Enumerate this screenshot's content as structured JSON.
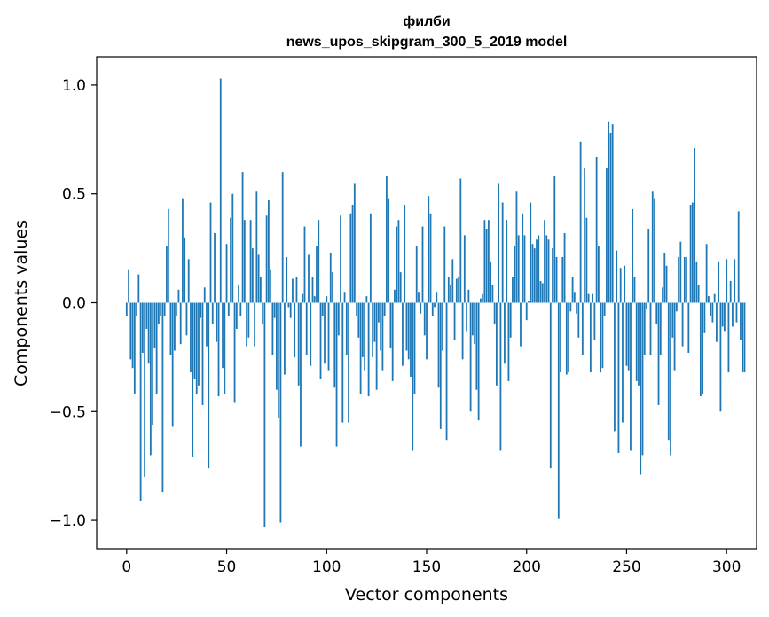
{
  "chart_data": {
    "type": "bar",
    "title_line1": "филби",
    "title_line2": "news_upos_skipgram_300_5_2019 model",
    "xlabel": "Vector components",
    "ylabel": "Components values",
    "xlim": [
      -15,
      315
    ],
    "ylim": [
      -1.13,
      1.13
    ],
    "x_ticks": [
      0,
      50,
      100,
      150,
      200,
      250,
      300
    ],
    "x_tick_labels": [
      "0",
      "50",
      "100",
      "150",
      "200",
      "250",
      "300"
    ],
    "y_ticks": [
      -1.0,
      -0.5,
      0.0,
      0.5,
      1.0
    ],
    "y_tick_labels": [
      "−1.0",
      "−0.5",
      "0.0",
      "0.5",
      "1.0"
    ],
    "bar_color": "#1f77b4",
    "values": [
      -0.06,
      0.15,
      -0.26,
      -0.3,
      -0.42,
      -0.06,
      0.13,
      -0.91,
      -0.23,
      -0.8,
      -0.12,
      -0.28,
      -0.7,
      -0.56,
      -0.21,
      -0.42,
      -0.1,
      -0.06,
      -0.87,
      -0.06,
      0.26,
      0.43,
      -0.24,
      -0.57,
      -0.22,
      -0.06,
      0.06,
      -0.19,
      0.48,
      0.3,
      -0.15,
      0.2,
      -0.32,
      -0.71,
      -0.35,
      -0.42,
      -0.38,
      -0.07,
      -0.47,
      0.07,
      -0.2,
      -0.76,
      0.46,
      -0.1,
      0.32,
      -0.18,
      -0.43,
      1.03,
      -0.3,
      -0.42,
      0.27,
      -0.06,
      0.39,
      0.5,
      -0.46,
      -0.12,
      0.08,
      -0.06,
      0.6,
      0.38,
      -0.2,
      -0.16,
      0.38,
      0.25,
      -0.2,
      0.51,
      0.22,
      0.12,
      -0.1,
      -1.03,
      0.4,
      0.47,
      0.15,
      -0.24,
      -0.07,
      -0.4,
      -0.53,
      -1.01,
      0.6,
      -0.33,
      0.21,
      -0.02,
      -0.07,
      0.11,
      -0.25,
      0.12,
      -0.38,
      -0.66,
      0.04,
      0.35,
      -0.24,
      0.22,
      -0.29,
      0.12,
      0.03,
      0.26,
      0.38,
      -0.35,
      -0.06,
      -0.28,
      0.03,
      -0.31,
      0.23,
      0.14,
      -0.39,
      -0.66,
      -0.15,
      0.4,
      -0.55,
      0.05,
      -0.24,
      -0.55,
      0.41,
      0.45,
      0.55,
      -0.06,
      -0.16,
      -0.42,
      -0.25,
      -0.31,
      0.03,
      -0.43,
      0.41,
      -0.25,
      -0.18,
      -0.4,
      -0.09,
      -0.22,
      -0.31,
      -0.06,
      0.58,
      0.48,
      -0.21,
      -0.36,
      0.06,
      0.35,
      0.38,
      0.14,
      -0.29,
      0.45,
      -0.22,
      -0.26,
      -0.34,
      -0.68,
      -0.42,
      0.26,
      0.05,
      -0.05,
      0.35,
      -0.15,
      -0.26,
      0.49,
      0.41,
      -0.06,
      -0.02,
      0.05,
      -0.39,
      -0.58,
      -0.22,
      0.35,
      -0.63,
      0.12,
      0.08,
      0.2,
      -0.17,
      0.11,
      0.12,
      0.57,
      -0.26,
      0.31,
      -0.13,
      0.06,
      -0.5,
      -0.15,
      -0.19,
      -0.4,
      -0.54,
      0.02,
      0.04,
      0.38,
      0.34,
      0.38,
      0.19,
      0.08,
      -0.1,
      -0.38,
      0.55,
      -0.68,
      0.46,
      -0.28,
      0.38,
      -0.36,
      -0.16,
      0.12,
      0.26,
      0.51,
      0.31,
      -0.2,
      0.41,
      0.31,
      -0.08,
      0.01,
      0.46,
      0.27,
      0.25,
      0.29,
      0.31,
      0.1,
      0.09,
      0.38,
      0.31,
      0.29,
      -0.76,
      0.25,
      0.58,
      0.21,
      -0.99,
      -0.32,
      0.21,
      0.32,
      -0.33,
      -0.32,
      -0.04,
      0.12,
      0.05,
      -0.05,
      -0.16,
      0.74,
      -0.24,
      0.62,
      0.39,
      0.04,
      -0.32,
      0.04,
      -0.17,
      0.67,
      0.26,
      -0.32,
      -0.3,
      -0.06,
      0.62,
      0.83,
      0.78,
      0.82,
      -0.59,
      0.24,
      -0.69,
      0.16,
      -0.55,
      0.17,
      -0.29,
      -0.31,
      -0.68,
      0.43,
      0.12,
      -0.36,
      -0.38,
      -0.79,
      -0.7,
      -0.24,
      -0.03,
      0.34,
      -0.24,
      0.51,
      0.48,
      -0.1,
      -0.47,
      -0.24,
      0.07,
      0.23,
      0.17,
      -0.63,
      -0.7,
      -0.16,
      -0.31,
      -0.04,
      0.21,
      0.28,
      -0.2,
      0.21,
      0.21,
      -0.23,
      0.45,
      0.46,
      0.71,
      0.19,
      0.08,
      -0.43,
      -0.42,
      -0.14,
      0.27,
      0.03,
      -0.06,
      -0.09,
      0.04,
      -0.18,
      0.19,
      -0.5,
      -0.11,
      -0.13,
      0.2,
      -0.32,
      0.1,
      -0.11,
      0.2,
      -0.09,
      0.42,
      -0.17,
      -0.32,
      -0.32
    ]
  }
}
